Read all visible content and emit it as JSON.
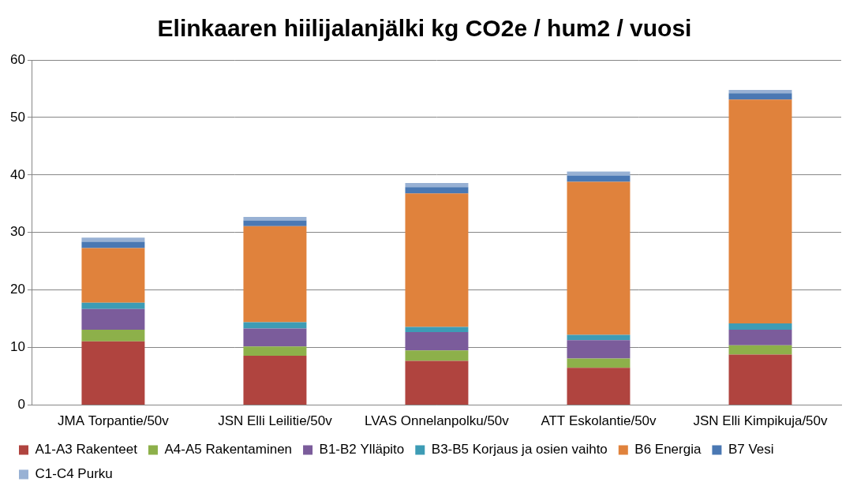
{
  "chart_data": {
    "type": "bar",
    "title": "Elinkaaren hiilijalanjälki kg CO2e / hum2 / vuosi",
    "categories": [
      "JMA Torpantie/50v",
      "JSN Elli Leilitie/50v",
      "LVAS Onnelanpolku/50v",
      "ATT Eskolantie/50v",
      "JSN Elli Kimpikuja/50v"
    ],
    "series": [
      {
        "name": "A1-A3 Rakenteet",
        "color": "#b0443f",
        "values": [
          11.1,
          8.6,
          7.7,
          6.5,
          8.8
        ]
      },
      {
        "name": "A4-A5 Rakentaminen",
        "color": "#8db04a",
        "values": [
          2.0,
          1.6,
          1.8,
          1.6,
          1.6
        ]
      },
      {
        "name": "B1-B2 Ylläpito",
        "color": "#7b5c9b",
        "values": [
          3.6,
          3.1,
          3.2,
          3.2,
          2.7
        ]
      },
      {
        "name": "B3-B5 Korjaus ja osien vaihto",
        "color": "#3d9cb5",
        "values": [
          1.1,
          1.1,
          0.9,
          0.9,
          1.1
        ]
      },
      {
        "name": "B6 Energia",
        "color": "#e0823c",
        "values": [
          9.5,
          16.7,
          23.2,
          26.6,
          38.9
        ]
      },
      {
        "name": "B7 Vesi",
        "color": "#4a78b3",
        "values": [
          1.1,
          1.0,
          1.1,
          1.1,
          1.1
        ]
      },
      {
        "name": "C1-C4 Purku",
        "color": "#98b1d4",
        "values": [
          0.7,
          0.6,
          0.7,
          0.7,
          0.6
        ]
      }
    ],
    "ylim": [
      0,
      60
    ],
    "yticks": [
      0,
      10,
      20,
      30,
      40,
      50,
      60
    ],
    "stacked": true,
    "grid": true,
    "legend": "bottom"
  }
}
